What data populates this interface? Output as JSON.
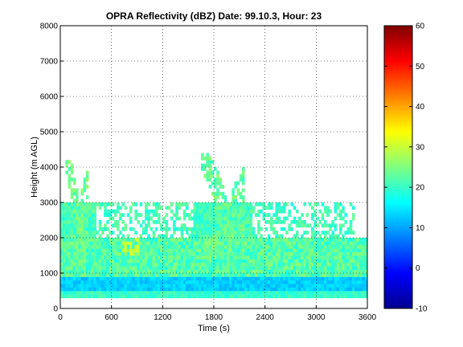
{
  "chart_data": {
    "type": "heatmap",
    "title": "OPRA Reflectivity (dBZ)  Date: 99.10.3, Hour: 23",
    "xlabel": "Time (s)",
    "ylabel": "Height (m AGL)",
    "xlim": [
      0,
      3600
    ],
    "ylim": [
      0,
      8000
    ],
    "xticks": [
      0,
      600,
      1200,
      1800,
      2400,
      3000,
      3600
    ],
    "yticks": [
      0,
      1000,
      2000,
      3000,
      4000,
      5000,
      6000,
      7000,
      8000
    ],
    "grid": true,
    "colorbar": {
      "min": -10,
      "max": 60,
      "ticks": [
        -10,
        0,
        10,
        20,
        30,
        40,
        50,
        60
      ],
      "colormap": "jet",
      "placement": "right"
    },
    "layers": [
      {
        "name": "surface-band",
        "y_range": [
          250,
          500
        ],
        "value_dbz": 20
      },
      {
        "name": "strong-low-band",
        "y_range": [
          500,
          900
        ],
        "value_dbz": 13
      },
      {
        "name": "main-echo",
        "y_range": [
          900,
          2000
        ],
        "value_dbz": 22
      },
      {
        "name": "upper-echo",
        "y_range": [
          2000,
          3000
        ],
        "value_dbz": 21
      }
    ],
    "plumes": [
      {
        "x_range": [
          60,
          300
        ],
        "top": 4200,
        "value_dbz": 24
      },
      {
        "x_range": [
          1650,
          2150
        ],
        "top": 4350,
        "value_dbz": 23
      },
      {
        "x_range": [
          700,
          900
        ],
        "top": 2000,
        "value_dbz": 30
      }
    ]
  }
}
